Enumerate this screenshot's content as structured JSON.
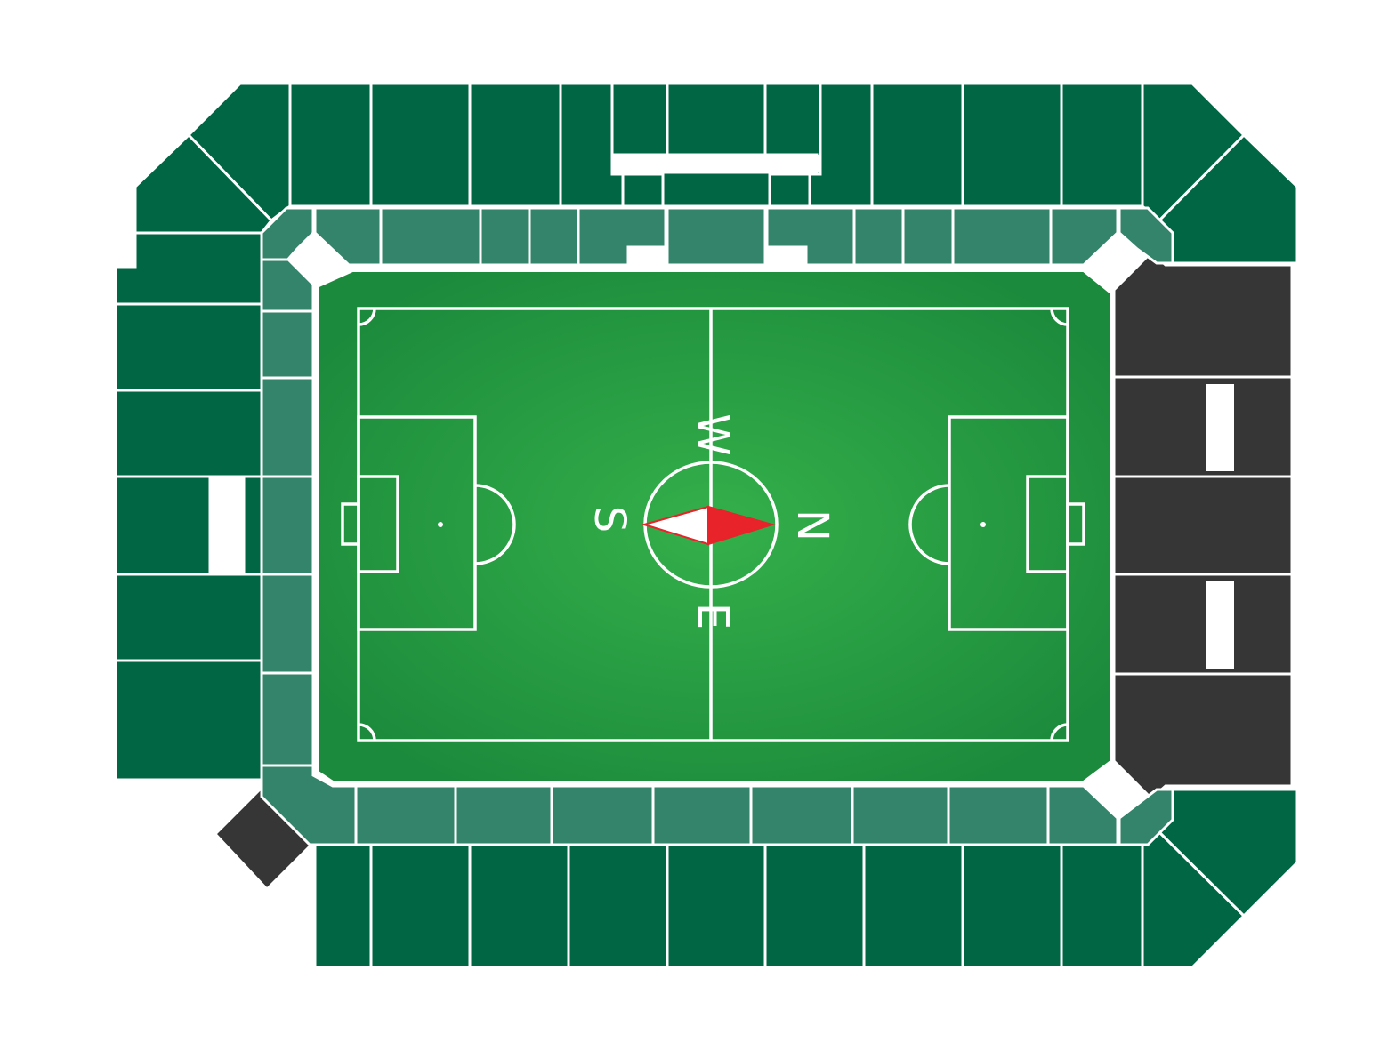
{
  "compass": {
    "north": "N",
    "south": "S",
    "east": "E",
    "west": "W"
  },
  "colors": {
    "upper_tier": "#016644",
    "lower_tier": "#33846a",
    "closed_section": "#363636",
    "pitch_center": "#33b04a",
    "pitch_edge": "#1a8a3c",
    "needle_north": "#e8232a",
    "needle_south": "#ffffff"
  }
}
